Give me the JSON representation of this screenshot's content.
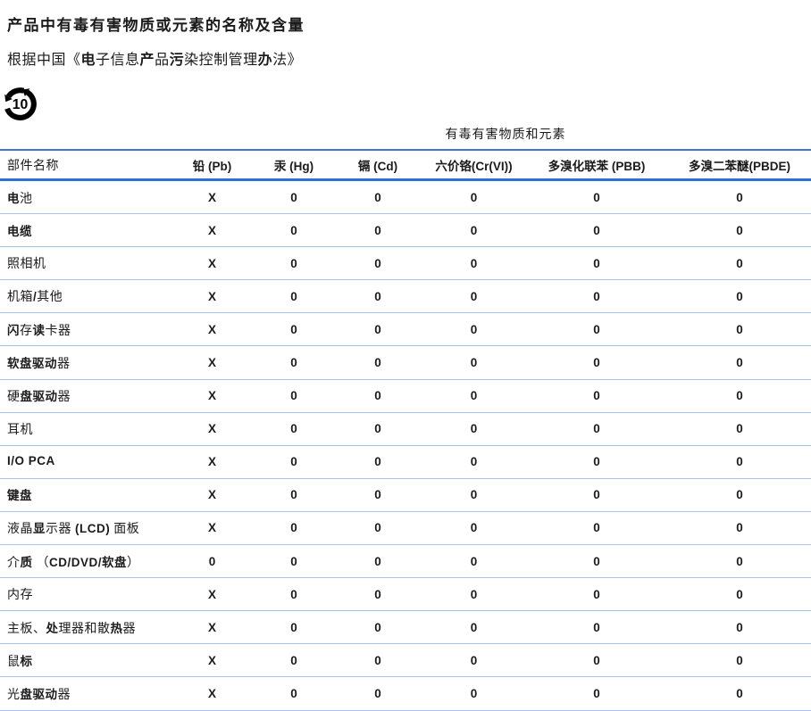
{
  "title_segments": [
    [
      "产",
      1
    ],
    [
      "品中有毒有害物",
      0
    ],
    [
      "质",
      1
    ],
    [
      "或元素的名称及含量",
      0
    ]
  ],
  "subtitle_segments": [
    [
      "根据中国《",
      0
    ],
    [
      "电",
      1
    ],
    [
      "子信息",
      0
    ],
    [
      "产",
      1
    ],
    [
      "品",
      0
    ],
    [
      "污",
      1
    ],
    [
      "染控制管理",
      0
    ],
    [
      "办",
      1
    ],
    [
      "法》",
      0
    ]
  ],
  "epup": {
    "number": "10",
    "icon": "china-epup-recycle-icon"
  },
  "table": {
    "group_header": "有毒有害物质和元素",
    "part_col_header": "部件名称",
    "substance_cols": [
      "铅 (Pb)",
      "汞 (Hg)",
      "镉 (Cd)",
      "六价铬(Cr(VI))",
      "多溴化联苯 (PBB)",
      "多溴二苯醚(PBDE)"
    ],
    "rows": [
      {
        "name_segments": [
          [
            "电",
            1
          ],
          [
            "池",
            0
          ]
        ],
        "values": [
          "X",
          "0",
          "0",
          "0",
          "0",
          "0"
        ]
      },
      {
        "name_segments": [
          [
            "电缆",
            1
          ]
        ],
        "values": [
          "X",
          "0",
          "0",
          "0",
          "0",
          "0"
        ]
      },
      {
        "name_segments": [
          [
            "照相机",
            0
          ]
        ],
        "values": [
          "X",
          "0",
          "0",
          "0",
          "0",
          "0"
        ]
      },
      {
        "name_segments": [
          [
            "机箱",
            0
          ],
          [
            "/",
            1
          ],
          [
            "其他",
            0
          ]
        ],
        "values": [
          "X",
          "0",
          "0",
          "0",
          "0",
          "0"
        ]
      },
      {
        "name_segments": [
          [
            "闪",
            1
          ],
          [
            "存",
            0
          ],
          [
            "读",
            1
          ],
          [
            "卡器",
            0
          ]
        ],
        "values": [
          "X",
          "0",
          "0",
          "0",
          "0",
          "0"
        ]
      },
      {
        "name_segments": [
          [
            "软盘驱动",
            1
          ],
          [
            "器",
            0
          ]
        ],
        "values": [
          "X",
          "0",
          "0",
          "0",
          "0",
          "0"
        ]
      },
      {
        "name_segments": [
          [
            "硬",
            0
          ],
          [
            "盘驱动",
            1
          ],
          [
            "器",
            0
          ]
        ],
        "values": [
          "X",
          "0",
          "0",
          "0",
          "0",
          "0"
        ]
      },
      {
        "name_segments": [
          [
            "耳机",
            0
          ]
        ],
        "values": [
          "X",
          "0",
          "0",
          "0",
          "0",
          "0"
        ]
      },
      {
        "name_segments": [
          [
            "I/O PCA",
            1
          ]
        ],
        "values": [
          "X",
          "0",
          "0",
          "0",
          "0",
          "0"
        ]
      },
      {
        "name_segments": [
          [
            "键盘",
            1
          ]
        ],
        "values": [
          "X",
          "0",
          "0",
          "0",
          "0",
          "0"
        ]
      },
      {
        "name_segments": [
          [
            "液晶",
            0
          ],
          [
            "显",
            1
          ],
          [
            "示器 ",
            0
          ],
          [
            "(LCD)",
            1
          ],
          [
            " 面板",
            0
          ]
        ],
        "values": [
          "X",
          "0",
          "0",
          "0",
          "0",
          "0"
        ]
      },
      {
        "name_segments": [
          [
            "介",
            0
          ],
          [
            "质",
            1
          ],
          [
            " （",
            0
          ],
          [
            "CD/DVD/软盘",
            1
          ],
          [
            "）",
            0
          ]
        ],
        "values": [
          "0",
          "0",
          "0",
          "0",
          "0",
          "0"
        ]
      },
      {
        "name_segments": [
          [
            "内存",
            0
          ]
        ],
        "values": [
          "X",
          "0",
          "0",
          "0",
          "0",
          "0"
        ]
      },
      {
        "name_segments": [
          [
            "主板、",
            0
          ],
          [
            "处",
            1
          ],
          [
            "理器和散",
            0
          ],
          [
            "热",
            1
          ],
          [
            "器",
            0
          ]
        ],
        "values": [
          "X",
          "0",
          "0",
          "0",
          "0",
          "0"
        ]
      },
      {
        "name_segments": [
          [
            "鼠",
            0
          ],
          [
            "标",
            1
          ]
        ],
        "values": [
          "X",
          "0",
          "0",
          "0",
          "0",
          "0"
        ]
      },
      {
        "name_segments": [
          [
            "光",
            0
          ],
          [
            "盘驱动",
            1
          ],
          [
            "器",
            0
          ]
        ],
        "values": [
          "X",
          "0",
          "0",
          "0",
          "0",
          "0"
        ]
      }
    ]
  },
  "colors": {
    "ink": "#1b1b1b",
    "line_thin": "#a6c4ec",
    "line_mid": "#3f74cf",
    "line_thick": "#2e6edb"
  }
}
